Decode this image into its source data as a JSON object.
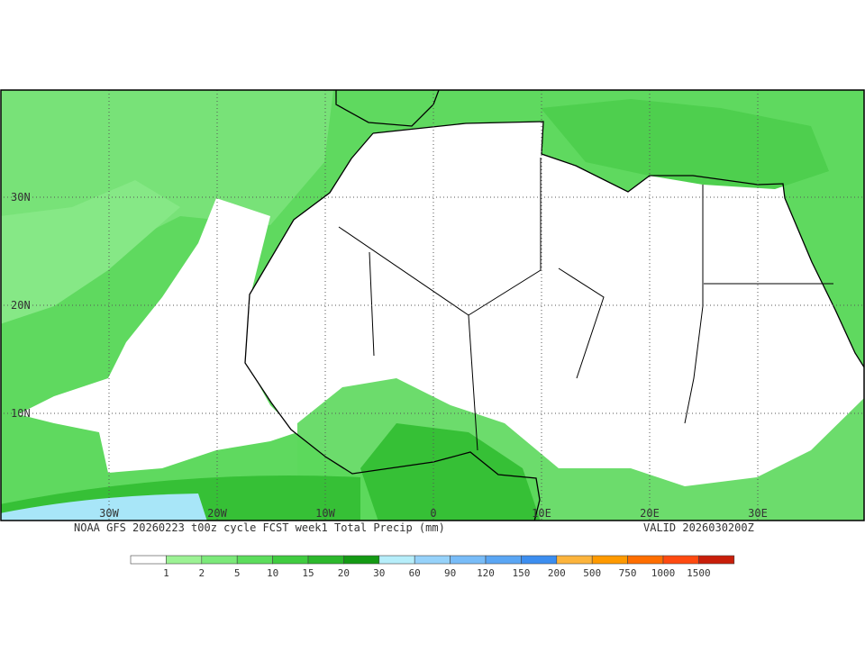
{
  "map": {
    "lat_labels": [
      "30N",
      "20N",
      "10N"
    ],
    "lon_labels": [
      "30W",
      "20W",
      "10W",
      "0",
      "10E",
      "20E",
      "30E"
    ],
    "caption": {
      "title": "NOAA GFS 20260223 t00z cycle FCST week1 Total Precip (mm)",
      "valid": "VALID 2026030200Z"
    }
  },
  "legend": {
    "labels": [
      "1",
      "2",
      "5",
      "10",
      "15",
      "20",
      "30",
      "60",
      "90",
      "120",
      "150",
      "200",
      "500",
      "750",
      "1000",
      "1500"
    ],
    "colors": [
      "#ffffff",
      "#9cf294",
      "#7ce97a",
      "#5cdd5c",
      "#40cc40",
      "#2cb82c",
      "#149a14",
      "#b6eefa",
      "#96d2fa",
      "#78bcf8",
      "#5aa6f4",
      "#3c8ef0",
      "#fcb43c",
      "#ff9a00",
      "#ff6e00",
      "#ff4a10",
      "#c81e0a"
    ]
  }
}
